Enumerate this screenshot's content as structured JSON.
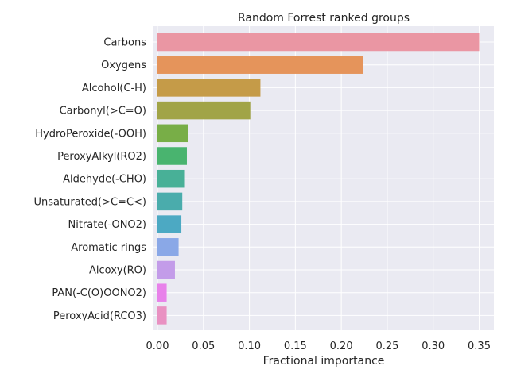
{
  "chart_data": {
    "type": "bar",
    "orientation": "horizontal",
    "title": "Random Forrest ranked groups",
    "xlabel": "Fractional importance",
    "ylabel": "",
    "xlim": [
      0,
      0.365
    ],
    "xticks": [
      0.0,
      0.05,
      0.1,
      0.15,
      0.2,
      0.25,
      0.3,
      0.35
    ],
    "xtick_labels": [
      "0.00",
      "0.05",
      "0.10",
      "0.15",
      "0.20",
      "0.25",
      "0.30",
      "0.35"
    ],
    "grid": true,
    "categories": [
      "Carbons",
      "Oxygens",
      "Alcohol(C-H)",
      "Carbonyl(>C=O)",
      "HydroPeroxide(-OOH)",
      "PeroxyAlkyl(RO2)",
      "Aldehyde(-CHO)",
      "Unsaturated(>C=C<)",
      "Nitrate(-ONO2)",
      "Aromatic rings",
      "Alcoxy(RO)",
      "PAN(-C(O)OONO2)",
      "PeroxyAcid(RCO3)"
    ],
    "values": [
      0.35,
      0.224,
      0.112,
      0.101,
      0.033,
      0.032,
      0.029,
      0.027,
      0.026,
      0.023,
      0.019,
      0.01,
      0.01
    ],
    "colors": [
      "#ea96a3",
      "#e5945b",
      "#c59b48",
      "#a1a447",
      "#78ae47",
      "#49b46f",
      "#48b097",
      "#4aacac",
      "#4ca9c3",
      "#8aa8e7",
      "#c39ce9",
      "#e882ea",
      "#e991c2"
    ]
  }
}
